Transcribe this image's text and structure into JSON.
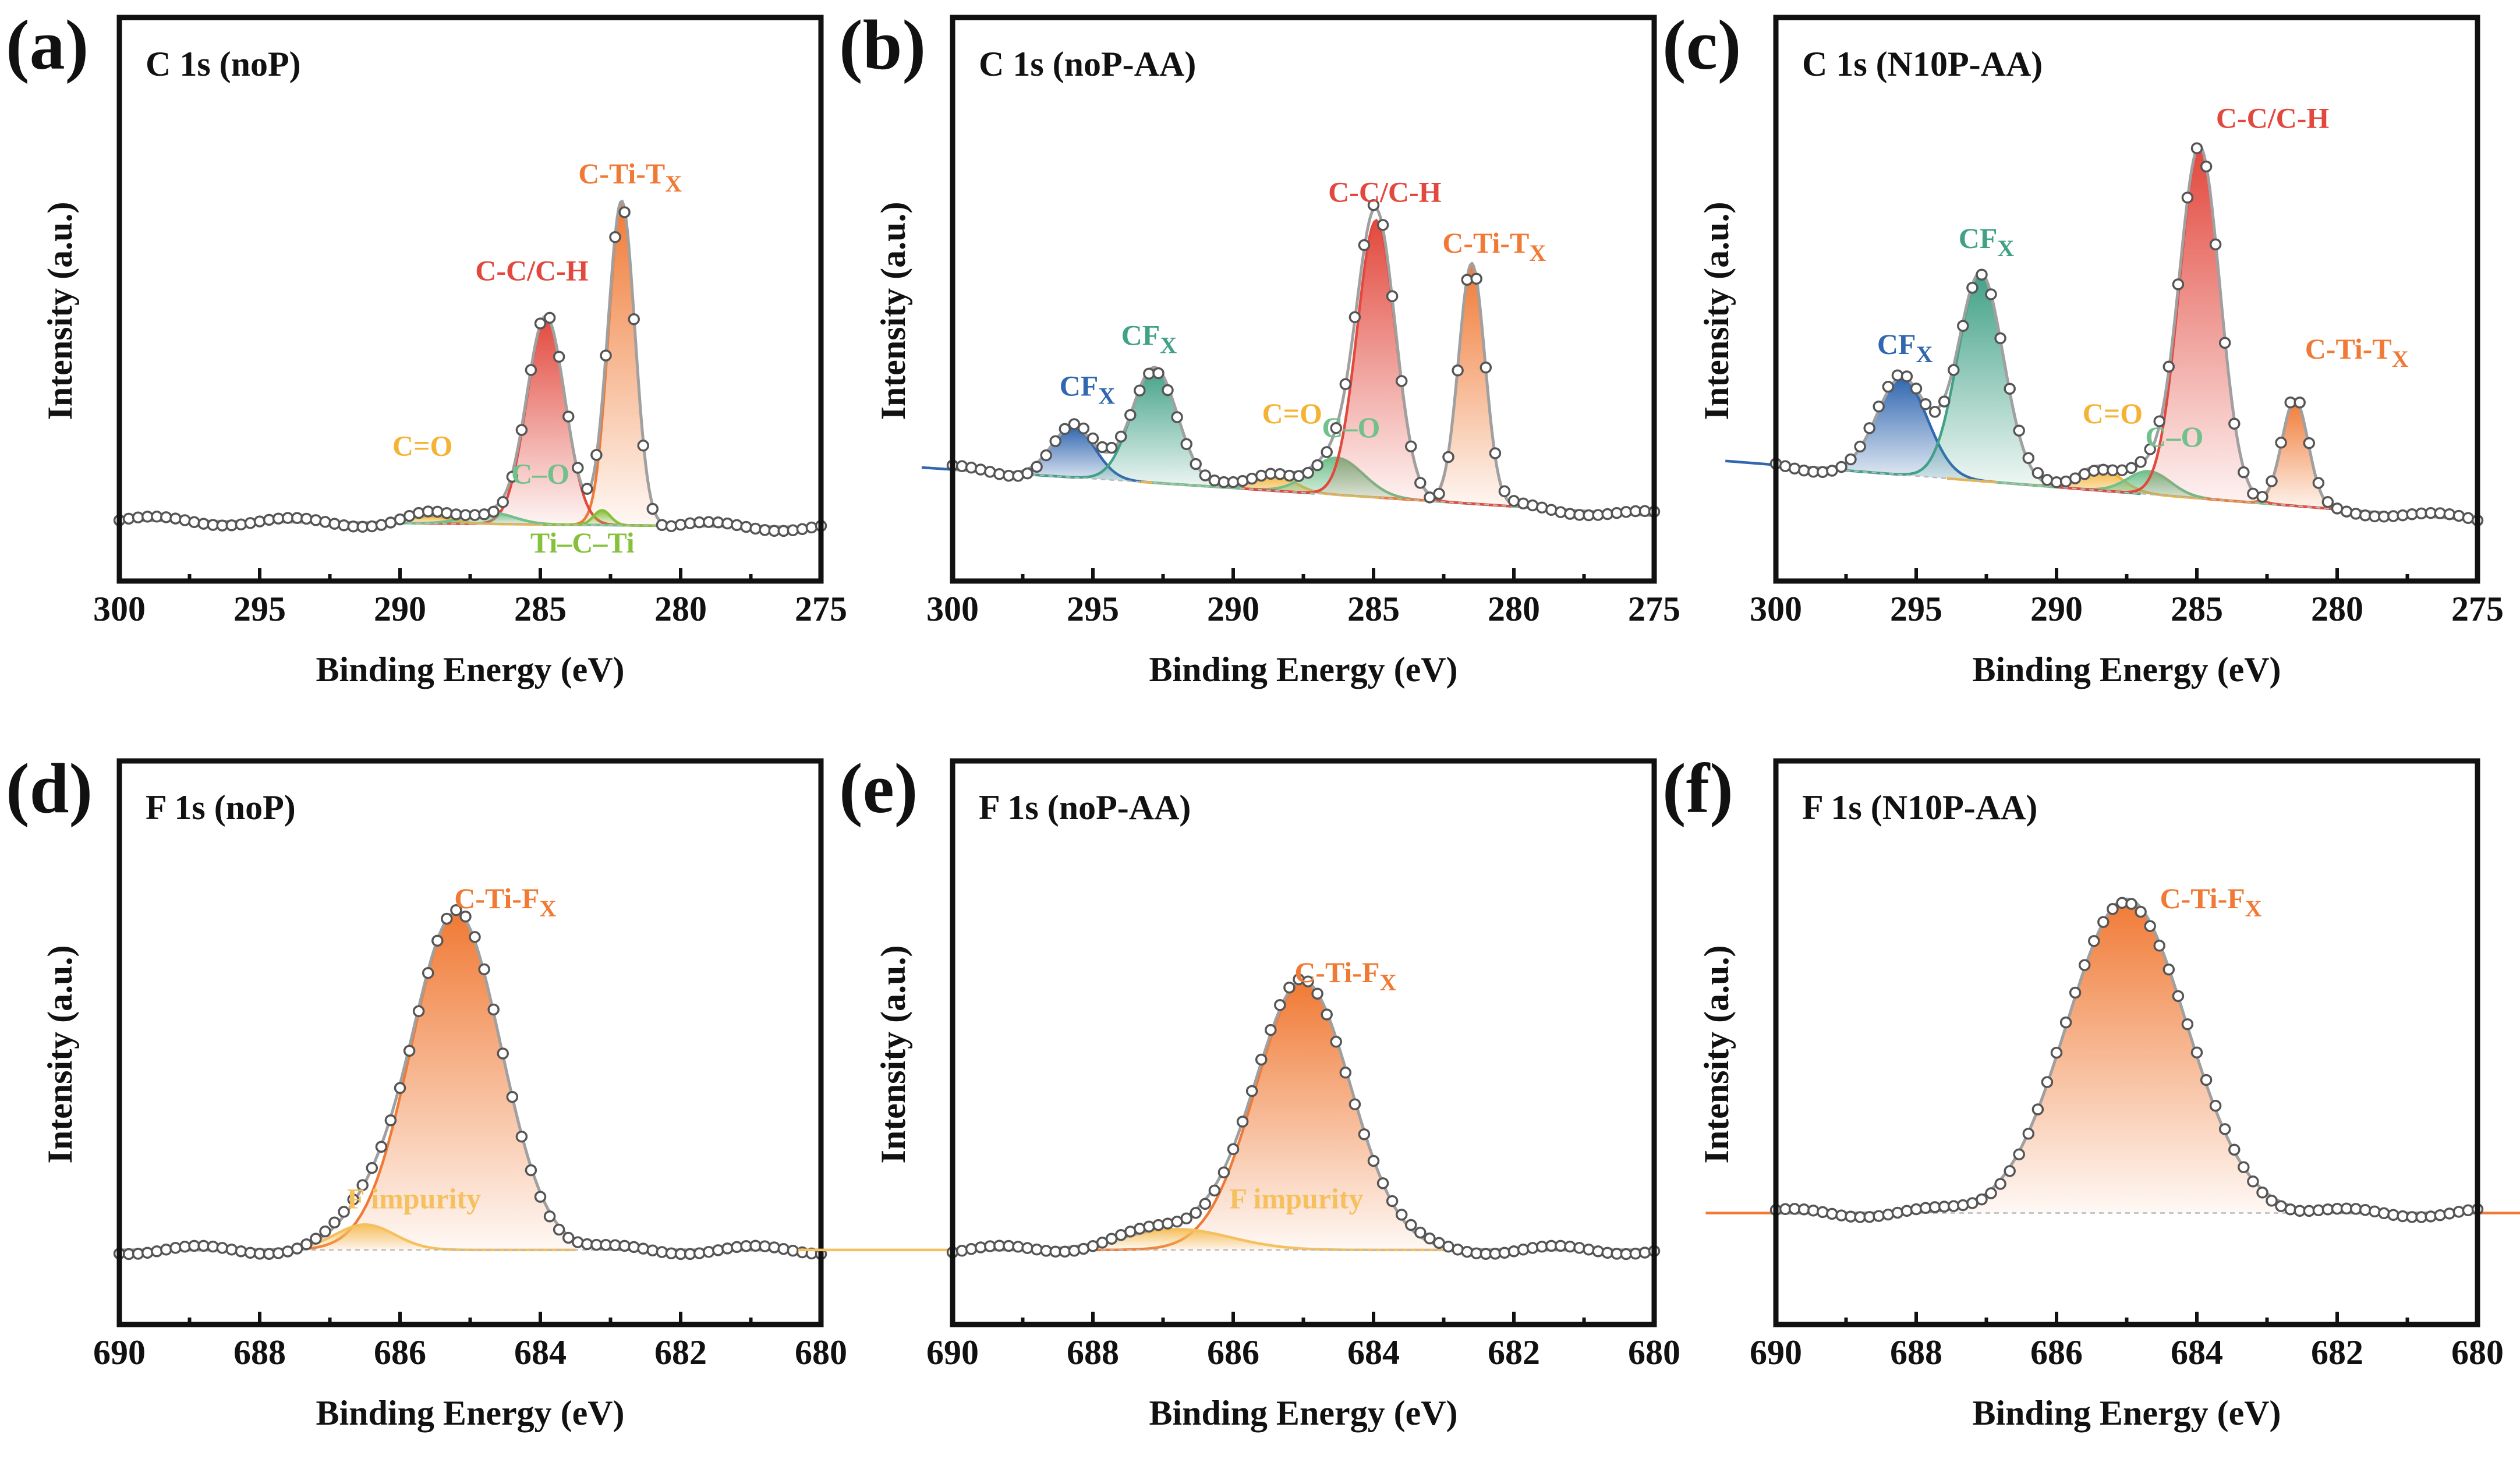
{
  "figure": {
    "panel_labels": [
      "(a)",
      "(b)",
      "(c)",
      "(d)",
      "(e)",
      "(f)"
    ],
    "colors": {
      "orange": "#f07a35",
      "red": "#e2483d",
      "green": "#72c08c",
      "teal": "#41a186",
      "blue": "#3167b0",
      "yellow": "#f5b335",
      "light_green": "#86c13c",
      "light_yellow": "#f5c05d",
      "envelope": "#a0a0a0"
    }
  },
  "chart_data": [
    {
      "type": "line",
      "panel": "(a)",
      "title": "C 1s (noP)",
      "xlabel": "Binding Energy (eV)",
      "ylabel": "Intensity (a.u.)",
      "xlim": [
        300,
        275
      ],
      "ylim": [
        0,
        100
      ],
      "xticks": [
        300,
        295,
        290,
        285,
        280,
        275
      ],
      "baseline": [
        10,
        8.5
      ],
      "peaks": [
        {
          "label": "C-Ti-TX",
          "label_main": "C-Ti-T",
          "label_sub": "X",
          "center": 282.1,
          "height": 70,
          "fwhm": 1.1,
          "color": "#f07a35",
          "label_pos": [
            281.8,
            83
          ]
        },
        {
          "label": "C-C/C-H",
          "label_main": "C-C/C-H",
          "label_sub": "",
          "center": 284.8,
          "height": 45,
          "fwhm": 1.6,
          "color": "#e2483d",
          "label_pos": [
            285.3,
            62
          ]
        },
        {
          "label": "C=O",
          "label_main": "C=O",
          "label_sub": "",
          "center": 289.0,
          "height": 1.6,
          "fwhm": 1.8,
          "color": "#f5b335",
          "label_pos": [
            289.2,
            24
          ]
        },
        {
          "label": "C–O",
          "label_main": "C–O",
          "label_sub": "",
          "center": 286.8,
          "height": 2.5,
          "fwhm": 2.0,
          "color": "#72c08c",
          "label_pos": [
            285.0,
            18
          ]
        },
        {
          "label": "Ti–C–Ti",
          "label_main": "Ti–C–Ti",
          "label_sub": "",
          "center": 282.8,
          "height": 3.2,
          "fwhm": 0.7,
          "color": "#86c13c",
          "label_pos": [
            283.5,
            3
          ]
        }
      ]
    },
    {
      "type": "line",
      "panel": "(b)",
      "title": "C 1s (noP-AA)",
      "xlabel": "Binding Energy (eV)",
      "ylabel": "Intensity (a.u.)",
      "xlim": [
        300,
        275
      ],
      "ylim": [
        0,
        100
      ],
      "xticks": [
        300,
        295,
        290,
        285,
        280,
        275
      ],
      "baseline": [
        21,
        11
      ],
      "peaks": [
        {
          "label": "CFX",
          "label_main": "CF",
          "label_sub": "X",
          "center": 295.7,
          "height": 11,
          "fwhm": 1.8,
          "color": "#3167b0",
          "label_pos": [
            295.2,
            37
          ]
        },
        {
          "label": "CFX",
          "label_main": "CF",
          "label_sub": "X",
          "center": 292.8,
          "height": 25,
          "fwhm": 1.9,
          "color": "#41a186",
          "label_pos": [
            293.0,
            48
          ]
        },
        {
          "label": "C=O",
          "label_main": "C=O",
          "label_sub": "",
          "center": 288.5,
          "height": 3.5,
          "fwhm": 1.6,
          "color": "#f5b335",
          "label_pos": [
            287.9,
            31
          ]
        },
        {
          "label": "C–O",
          "label_main": "C–O",
          "label_sub": "",
          "center": 286.3,
          "height": 8,
          "fwhm": 2.2,
          "color": "#72c08c",
          "label_pos": [
            285.8,
            28
          ]
        },
        {
          "label": "C-C/C-H",
          "label_main": "C-C/C-H",
          "label_sub": "",
          "center": 284.9,
          "height": 60,
          "fwhm": 1.6,
          "color": "#e2483d",
          "label_pos": [
            284.6,
            79
          ]
        },
        {
          "label": "C-Ti-TX",
          "label_main": "C-Ti-T",
          "label_sub": "X",
          "center": 281.5,
          "height": 52,
          "fwhm": 1.1,
          "color": "#f07a35",
          "label_pos": [
            280.7,
            68
          ]
        }
      ]
    },
    {
      "type": "line",
      "panel": "(c)",
      "title": "C 1s (N10P-AA)",
      "xlabel": "Binding Energy (eV)",
      "ylabel": "Intensity (a.u.)",
      "xlim": [
        300,
        275
      ],
      "ylim": [
        0,
        100
      ],
      "xticks": [
        300,
        295,
        290,
        285,
        280,
        275
      ],
      "baseline": [
        22,
        10
      ],
      "peaks": [
        {
          "label": "CFX",
          "label_main": "CF",
          "label_sub": "X",
          "center": 295.5,
          "height": 21,
          "fwhm": 2.1,
          "color": "#3167b0",
          "label_pos": [
            295.4,
            46
          ]
        },
        {
          "label": "CFX",
          "label_main": "CF",
          "label_sub": "X",
          "center": 292.7,
          "height": 45,
          "fwhm": 1.9,
          "color": "#41a186",
          "label_pos": [
            292.5,
            69
          ]
        },
        {
          "label": "C=O",
          "label_main": "C=O",
          "label_sub": "",
          "center": 288.5,
          "height": 5,
          "fwhm": 1.8,
          "color": "#f5b335",
          "label_pos": [
            288.0,
            31
          ]
        },
        {
          "label": "C–O",
          "label_main": "C–O",
          "label_sub": "",
          "center": 286.7,
          "height": 5,
          "fwhm": 1.8,
          "color": "#72c08c",
          "label_pos": [
            285.8,
            26
          ]
        },
        {
          "label": "C-C/C-H",
          "label_main": "C-C/C-H",
          "label_sub": "",
          "center": 284.9,
          "height": 76,
          "fwhm": 1.7,
          "color": "#e2483d",
          "label_pos": [
            282.3,
            95
          ]
        },
        {
          "label": "C-Ti-TX",
          "label_main": "C-Ti-T",
          "label_sub": "X",
          "center": 281.5,
          "height": 23,
          "fwhm": 1.1,
          "color": "#f07a35",
          "label_pos": [
            279.3,
            45
          ]
        }
      ]
    },
    {
      "type": "line",
      "panel": "(d)",
      "title": "F 1s (noP)",
      "xlabel": "Binding Energy (eV)",
      "ylabel": "Intensity (a.u.)",
      "xlim": [
        690,
        680
      ],
      "ylim": [
        0,
        100
      ],
      "xticks": [
        690,
        688,
        686,
        684,
        682,
        680
      ],
      "baseline": [
        13,
        13
      ],
      "peaks": [
        {
          "label": "C-Ti-FX",
          "label_main": "C-Ti-F",
          "label_sub": "X",
          "center": 685.2,
          "height": 73,
          "fwhm": 1.5,
          "color": "#f07a35",
          "label_pos": [
            684.5,
            87
          ]
        },
        {
          "label": "F impurity",
          "label_main": "F impurity",
          "label_sub": "",
          "center": 686.5,
          "height": 5.5,
          "fwhm": 1.0,
          "color": "#f5c05d",
          "label_pos": [
            685.8,
            22
          ]
        }
      ]
    },
    {
      "type": "line",
      "panel": "(e)",
      "title": "F 1s (noP-AA)",
      "xlabel": "Binding Energy (eV)",
      "ylabel": "Intensity (a.u.)",
      "xlim": [
        690,
        680
      ],
      "ylim": [
        0,
        100
      ],
      "xticks": [
        690,
        688,
        686,
        684,
        682,
        680
      ],
      "baseline": [
        13,
        13
      ],
      "peaks": [
        {
          "label": "C-Ti-FX",
          "label_main": "C-Ti-F",
          "label_sub": "X",
          "center": 685.0,
          "height": 58,
          "fwhm": 1.6,
          "color": "#f07a35",
          "label_pos": [
            684.4,
            71
          ]
        },
        {
          "label": "F impurity",
          "label_main": "F impurity",
          "label_sub": "",
          "center": 686.8,
          "height": 4.5,
          "fwhm": 1.8,
          "color": "#f5c05d",
          "label_pos": [
            685.1,
            22
          ]
        }
      ]
    },
    {
      "type": "line",
      "panel": "(f)",
      "title": "F 1s (N10P-AA)",
      "xlabel": "Binding Energy (eV)",
      "ylabel": "Intensity (a.u.)",
      "xlim": [
        690,
        680
      ],
      "ylim": [
        0,
        100
      ],
      "xticks": [
        690,
        688,
        686,
        684,
        682,
        680
      ],
      "baseline": [
        21,
        21
      ],
      "peaks": [
        {
          "label": "C-Ti-FX",
          "label_main": "C-Ti-F",
          "label_sub": "X",
          "center": 685.0,
          "height": 68,
          "fwhm": 2.0,
          "color": "#f07a35",
          "label_pos": [
            683.8,
            87
          ]
        }
      ]
    }
  ]
}
